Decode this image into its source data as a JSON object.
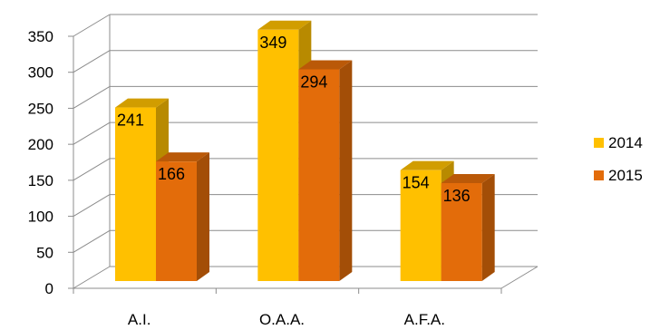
{
  "chart_data": {
    "type": "bar",
    "title": "",
    "xlabel": "",
    "ylabel": "",
    "categories": [
      "A.I.",
      "O.A.A.",
      "A.F.A."
    ],
    "series": [
      {
        "name": "2014",
        "values": [
          241,
          349,
          154
        ],
        "color": "#FFC000"
      },
      {
        "name": "2015",
        "values": [
          166,
          294,
          136
        ],
        "color": "#E36C0A"
      }
    ],
    "ylim": [
      0,
      350
    ],
    "yticks": [
      0,
      50,
      100,
      150,
      200,
      250,
      300,
      350
    ],
    "grid": true,
    "three_d": true,
    "legend_position": "right"
  }
}
